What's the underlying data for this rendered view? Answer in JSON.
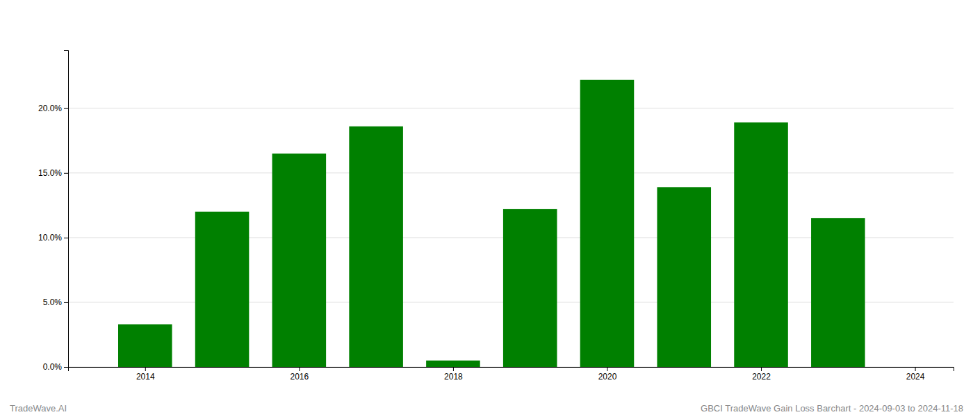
{
  "chart_data": {
    "type": "bar",
    "x": [
      2014,
      2015,
      2016,
      2017,
      2018,
      2019,
      2020,
      2021,
      2022,
      2023
    ],
    "values": [
      0.033,
      0.12,
      0.165,
      0.186,
      0.005,
      0.122,
      0.222,
      0.139,
      0.189,
      0.115
    ],
    "color": "#008000",
    "xlim": [
      2013.0,
      2024.5
    ],
    "xticks": [
      2014,
      2016,
      2018,
      2020,
      2022,
      2024
    ],
    "ylim": [
      0,
      0.245
    ],
    "yticks": [
      {
        "value": 0.0,
        "label": "0.0%"
      },
      {
        "value": 0.05,
        "label": "5.0%"
      },
      {
        "value": 0.1,
        "label": "10.0%"
      },
      {
        "value": 0.15,
        "label": "15.0%"
      },
      {
        "value": 0.2,
        "label": "20.0%"
      }
    ],
    "grid": true,
    "annotations": [
      "TradeWave.AI",
      "GBCI TradeWave Gain Loss Barchart - 2024-09-03 to 2024-11-18"
    ]
  }
}
